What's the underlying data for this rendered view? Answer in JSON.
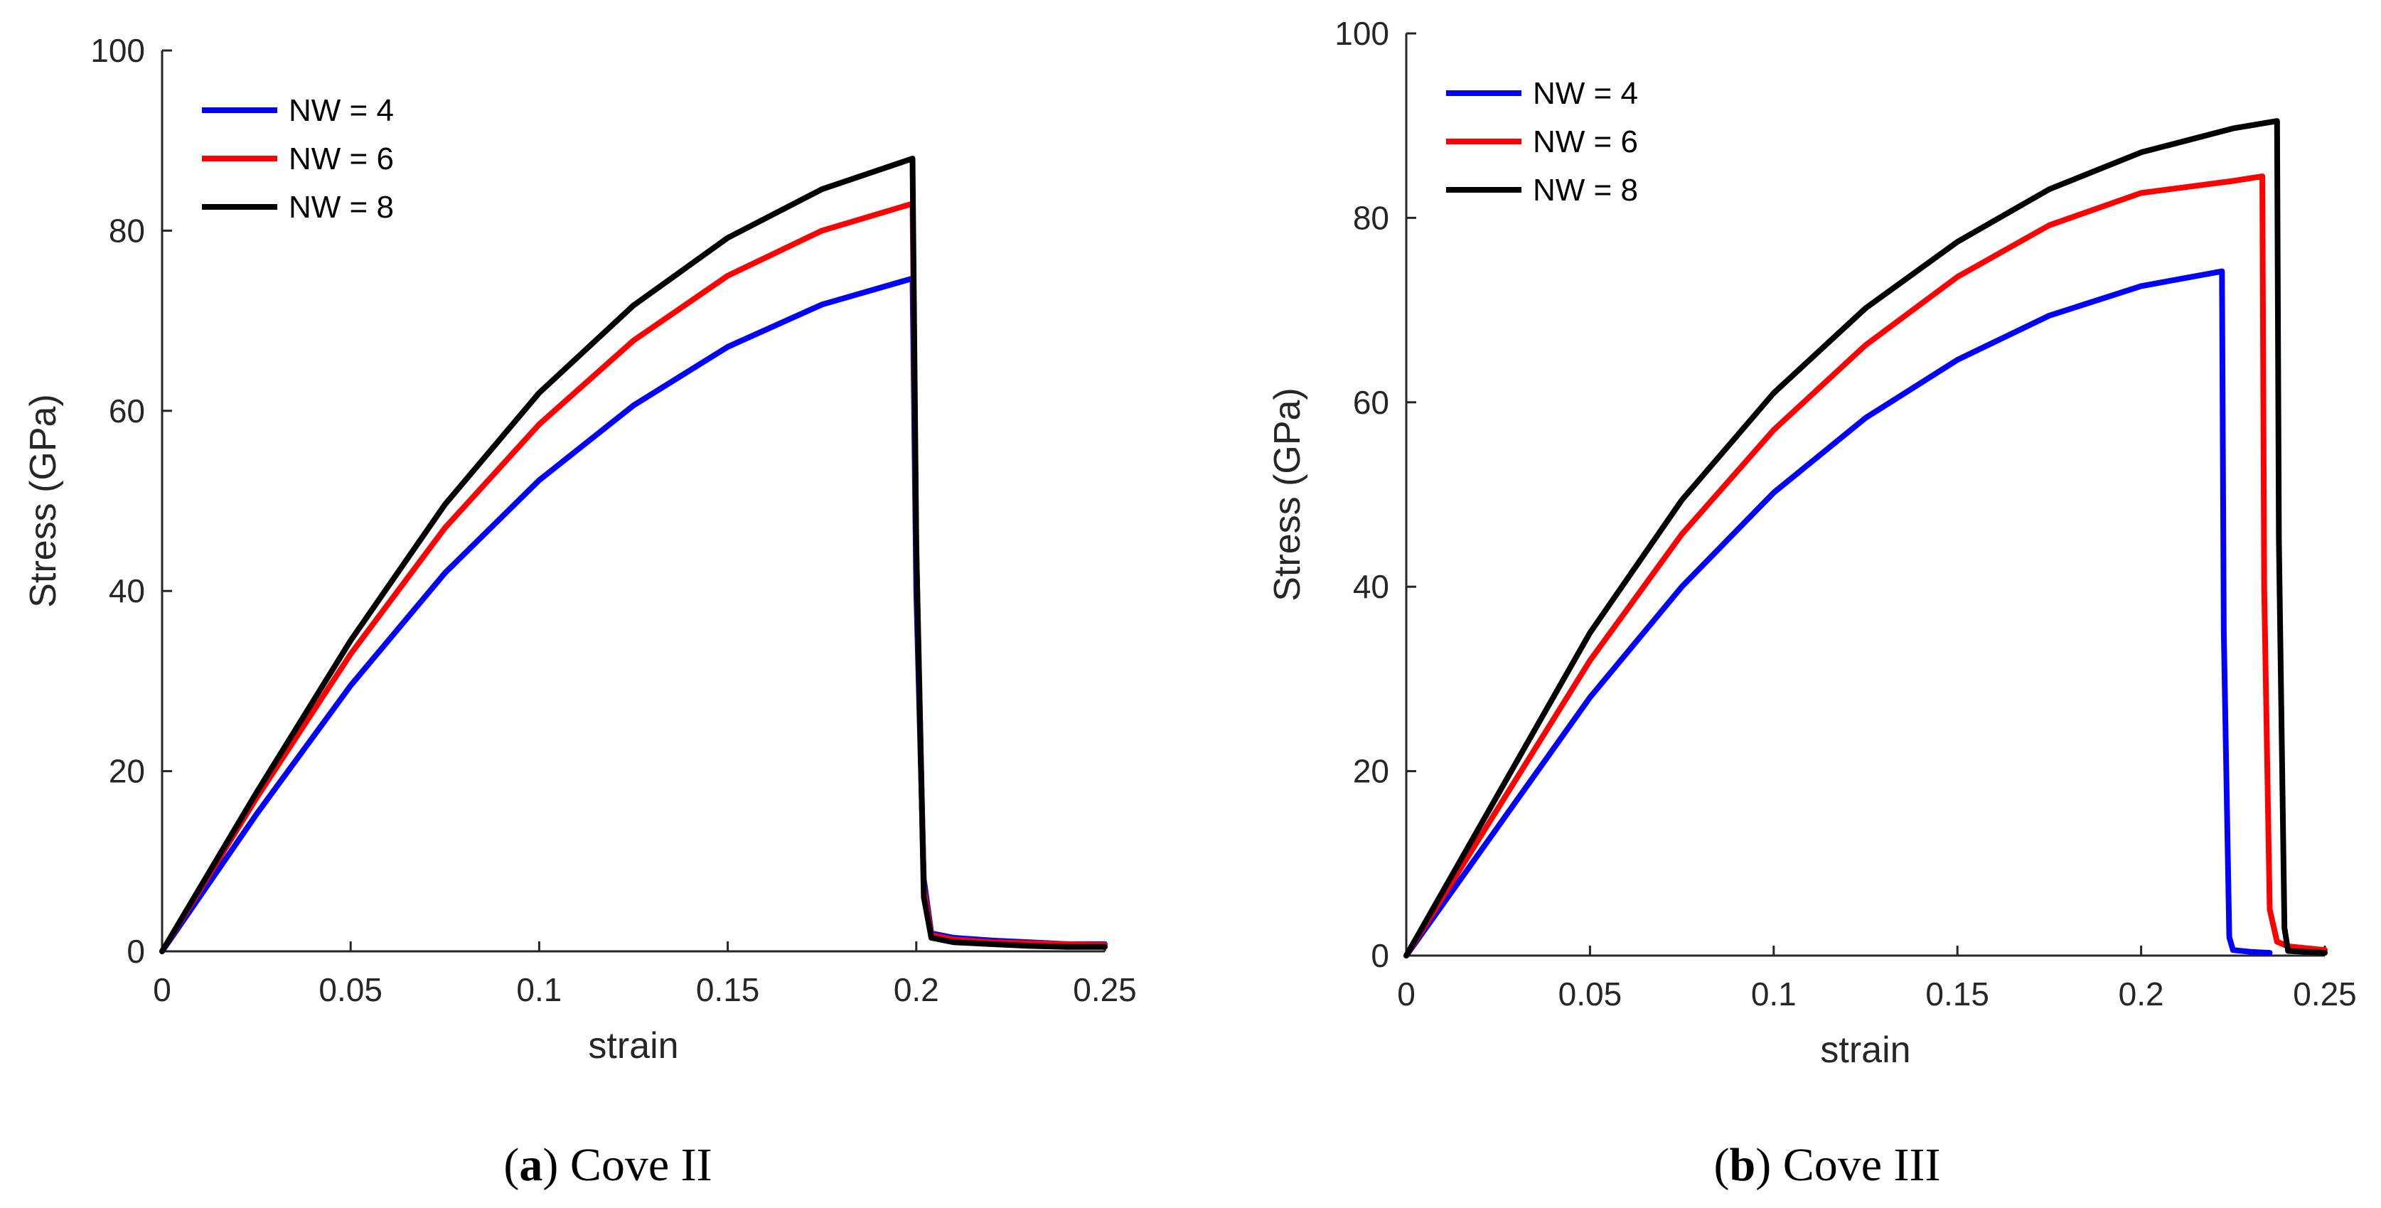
{
  "chart_data": [
    {
      "type": "line",
      "caption_letter": "a",
      "caption_text": "Cove II",
      "xlabel": "strain",
      "ylabel": "Stress (GPa)",
      "xlim": [
        0,
        0.25
      ],
      "ylim": [
        0,
        100
      ],
      "xticks": [
        "0",
        "0.05",
        "0.1",
        "0.15",
        "0.2",
        "0.25"
      ],
      "yticks": [
        "0",
        "20",
        "40",
        "60",
        "80",
        "100"
      ],
      "legend_position": "top-left",
      "series": [
        {
          "name": "NW = 4",
          "color": "#0000ff",
          "x": [
            0,
            0.025,
            0.05,
            0.075,
            0.1,
            0.125,
            0.15,
            0.175,
            0.199,
            0.2,
            0.202,
            0.204,
            0.21,
            0.22,
            0.23,
            0.24,
            0.25
          ],
          "y": [
            0,
            15.2,
            29.5,
            42.0,
            52.3,
            60.6,
            67.1,
            71.8,
            74.7,
            40.0,
            8.0,
            2.0,
            1.5,
            1.2,
            1.0,
            0.8,
            0.8
          ]
        },
        {
          "name": "NW = 6",
          "color": "#ff0000",
          "x": [
            0,
            0.025,
            0.05,
            0.075,
            0.1,
            0.125,
            0.15,
            0.175,
            0.199,
            0.2,
            0.202,
            0.204,
            0.21,
            0.22,
            0.23,
            0.24,
            0.25
          ],
          "y": [
            0,
            17.0,
            33.0,
            47.0,
            58.5,
            67.8,
            75.0,
            80.0,
            83.0,
            45.0,
            7.0,
            1.8,
            1.3,
            1.0,
            0.9,
            0.8,
            0.7
          ]
        },
        {
          "name": "NW = 8",
          "color": "#000000",
          "x": [
            0,
            0.025,
            0.05,
            0.075,
            0.1,
            0.125,
            0.15,
            0.175,
            0.199,
            0.2,
            0.202,
            0.204,
            0.21,
            0.22,
            0.23,
            0.24,
            0.25
          ],
          "y": [
            0,
            17.6,
            34.5,
            49.6,
            62.0,
            71.7,
            79.2,
            84.6,
            88.0,
            45.0,
            6.0,
            1.5,
            1.0,
            0.8,
            0.6,
            0.5,
            0.5
          ]
        }
      ]
    },
    {
      "type": "line",
      "caption_letter": "b",
      "caption_text": "Cove III",
      "xlabel": "strain",
      "ylabel": "Stress (GPa)",
      "xlim": [
        0,
        0.25
      ],
      "ylim": [
        0,
        100
      ],
      "xticks": [
        "0",
        "0.05",
        "0.1",
        "0.15",
        "0.2",
        "0.25"
      ],
      "yticks": [
        "0",
        "20",
        "40",
        "60",
        "80",
        "100"
      ],
      "legend_position": "top-left",
      "series": [
        {
          "name": "NW = 4",
          "color": "#0000ff",
          "x": [
            0,
            0.025,
            0.05,
            0.075,
            0.1,
            0.125,
            0.15,
            0.175,
            0.2,
            0.222,
            0.2225,
            0.224,
            0.225,
            0.23,
            0.235
          ],
          "y": [
            0,
            14.0,
            28.0,
            40.0,
            50.2,
            58.3,
            64.6,
            69.4,
            72.6,
            74.2,
            35.0,
            2.0,
            0.6,
            0.4,
            0.3
          ]
        },
        {
          "name": "NW = 6",
          "color": "#ff0000",
          "x": [
            0,
            0.025,
            0.05,
            0.075,
            0.1,
            0.125,
            0.15,
            0.175,
            0.2,
            0.225,
            0.233,
            0.2335,
            0.235,
            0.237,
            0.24,
            0.245,
            0.25
          ],
          "y": [
            0,
            16.0,
            32.0,
            45.7,
            57.0,
            66.2,
            73.6,
            79.2,
            82.7,
            84.0,
            84.5,
            40.0,
            5.0,
            1.5,
            1.0,
            0.8,
            0.6
          ]
        },
        {
          "name": "NW = 8",
          "color": "#000000",
          "x": [
            0,
            0.025,
            0.05,
            0.075,
            0.1,
            0.125,
            0.15,
            0.175,
            0.2,
            0.225,
            0.237,
            0.2375,
            0.239,
            0.24,
            0.245,
            0.25
          ],
          "y": [
            0,
            17.5,
            35.0,
            49.4,
            61.0,
            70.2,
            77.4,
            83.1,
            87.1,
            89.7,
            90.5,
            45.0,
            3.0,
            0.5,
            0.4,
            0.3
          ]
        }
      ]
    }
  ]
}
